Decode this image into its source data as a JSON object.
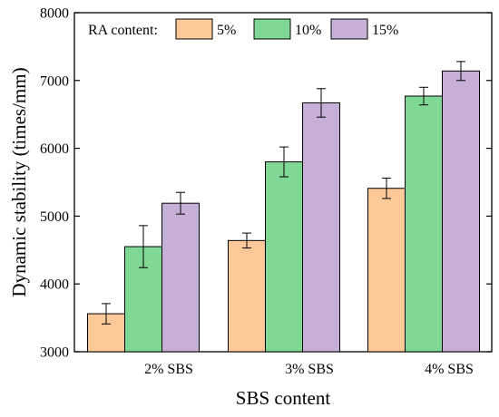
{
  "chart_data": {
    "type": "bar",
    "categories": [
      "2% SBS",
      "3% SBS",
      "4% SBS"
    ],
    "xlabel": "SBS content",
    "ylabel": "Dynamic stability (times/mm)",
    "ylim": [
      3000,
      8000
    ],
    "yticks": [
      3000,
      4000,
      5000,
      6000,
      7000,
      8000
    ],
    "grid": false,
    "legend_title": "RA content:",
    "legend_position": "top-left, horizontal",
    "series": [
      {
        "name": "5%",
        "color": "#fdc998",
        "values": [
          3560,
          4640,
          5410
        ],
        "errors": [
          150,
          110,
          150
        ]
      },
      {
        "name": "10%",
        "color": "#80d895",
        "values": [
          4550,
          5800,
          6770
        ],
        "errors": [
          310,
          220,
          130
        ]
      },
      {
        "name": "15%",
        "color": "#c6b0d8",
        "values": [
          5190,
          6670,
          7140
        ],
        "errors": [
          160,
          210,
          140
        ]
      }
    ]
  }
}
